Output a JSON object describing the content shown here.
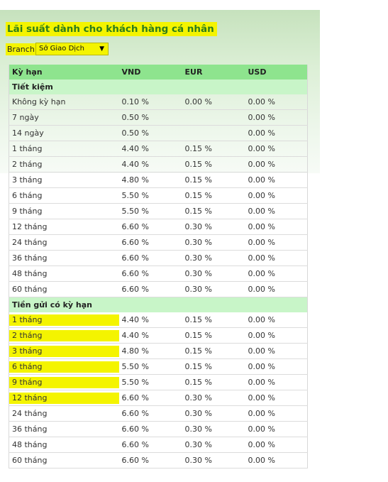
{
  "page": {
    "title": "Lãi suất dành cho khách hàng cá nhân",
    "branch_label": "Branch:",
    "branch_value": "Sở Giao Dịch"
  },
  "table": {
    "headers": [
      "Kỳ hạn",
      "VND",
      "EUR",
      "USD"
    ],
    "groups": [
      {
        "name": "Tiết kiệm",
        "rows": [
          [
            "Không kỳ hạn",
            "0.10 %",
            "0.00 %",
            "0.00 %"
          ],
          [
            "7 ngày",
            "0.50 %",
            "",
            "0.00 %"
          ],
          [
            "14 ngày",
            "0.50 %",
            "",
            "0.00 %"
          ],
          [
            "1 tháng",
            "4.40 %",
            "0.15 %",
            "0.00 %"
          ],
          [
            "2 tháng",
            "4.40 %",
            "0.15 %",
            "0.00 %"
          ],
          [
            "3 tháng",
            "4.80 %",
            "0.15 %",
            "0.00 %"
          ],
          [
            "6 tháng",
            "5.50 %",
            "0.15 %",
            "0.00 %"
          ],
          [
            "9 tháng",
            "5.50 %",
            "0.15 %",
            "0.00 %"
          ],
          [
            "12 tháng",
            "6.60 %",
            "0.30 %",
            "0.00 %"
          ],
          [
            "24 tháng",
            "6.60 %",
            "0.30 %",
            "0.00 %"
          ],
          [
            "36 tháng",
            "6.60 %",
            "0.30 %",
            "0.00 %"
          ],
          [
            "48 tháng",
            "6.60 %",
            "0.30 %",
            "0.00 %"
          ],
          [
            "60 tháng",
            "6.60 %",
            "0.30 %",
            "0.00 %"
          ]
        ]
      },
      {
        "name": "Tiền gửi có kỳ hạn",
        "rows": [
          [
            "1 tháng",
            "4.40 %",
            "0.15 %",
            "0.00 %"
          ],
          [
            "2 tháng",
            "4.40 %",
            "0.15 %",
            "0.00 %"
          ],
          [
            "3 tháng",
            "4.80 %",
            "0.15 %",
            "0.00 %"
          ],
          [
            "6 tháng",
            "5.50 %",
            "0.15 %",
            "0.00 %"
          ],
          [
            "9 tháng",
            "5.50 %",
            "0.15 %",
            "0.00 %"
          ],
          [
            "12 tháng",
            "6.60 %",
            "0.30 %",
            "0.00 %"
          ],
          [
            "24 tháng",
            "6.60 %",
            "0.30 %",
            "0.00 %"
          ],
          [
            "36 tháng",
            "6.60 %",
            "0.30 %",
            "0.00 %"
          ],
          [
            "48 tháng",
            "6.60 %",
            "0.30 %",
            "0.00 %"
          ],
          [
            "60 tháng",
            "6.60 %",
            "0.30 %",
            "0.00 %"
          ]
        ]
      }
    ]
  },
  "icons": {
    "dropdown": "triangle-down-icon"
  },
  "colors": {
    "highlight": "#f4f400",
    "title_text": "#2e7d1a",
    "header_bg": "#8ee48e",
    "group_bg": "#c8f5c8"
  }
}
